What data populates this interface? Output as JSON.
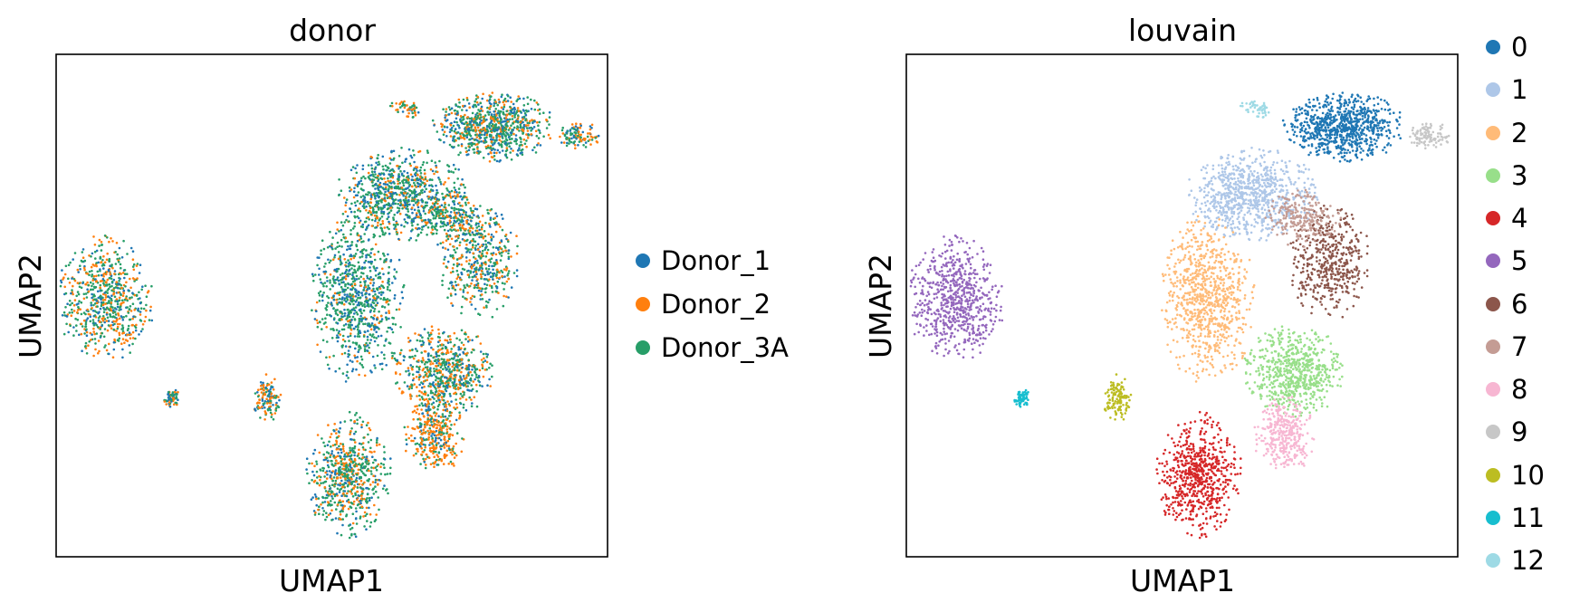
{
  "chart_data": [
    {
      "type": "scatter",
      "title": "donor",
      "xlabel": "UMAP1",
      "ylabel": "UMAP2",
      "grid": false,
      "legend_placement": "right",
      "series": [
        {
          "name": "Donor_1",
          "color": "#1f77b4"
        },
        {
          "name": "Donor_2",
          "color": "#ff7f0e"
        },
        {
          "name": "Donor_3A",
          "color": "#279e68"
        }
      ]
    },
    {
      "type": "scatter",
      "title": "louvain",
      "xlabel": "UMAP1",
      "ylabel": "UMAP2",
      "grid": false,
      "legend_placement": "right",
      "series": [
        {
          "name": "0",
          "color": "#1f77b4"
        },
        {
          "name": "1",
          "color": "#aec7e8"
        },
        {
          "name": "2",
          "color": "#ffbb78"
        },
        {
          "name": "3",
          "color": "#98df8a"
        },
        {
          "name": "4",
          "color": "#d62728"
        },
        {
          "name": "5",
          "color": "#9467bd"
        },
        {
          "name": "6",
          "color": "#8c564b"
        },
        {
          "name": "7",
          "color": "#c49c94"
        },
        {
          "name": "8",
          "color": "#f7b6d2"
        },
        {
          "name": "9",
          "color": "#c7c7c7"
        },
        {
          "name": "10",
          "color": "#bcbd22"
        },
        {
          "name": "11",
          "color": "#17becf"
        },
        {
          "name": "12",
          "color": "#9edae5"
        }
      ]
    }
  ]
}
